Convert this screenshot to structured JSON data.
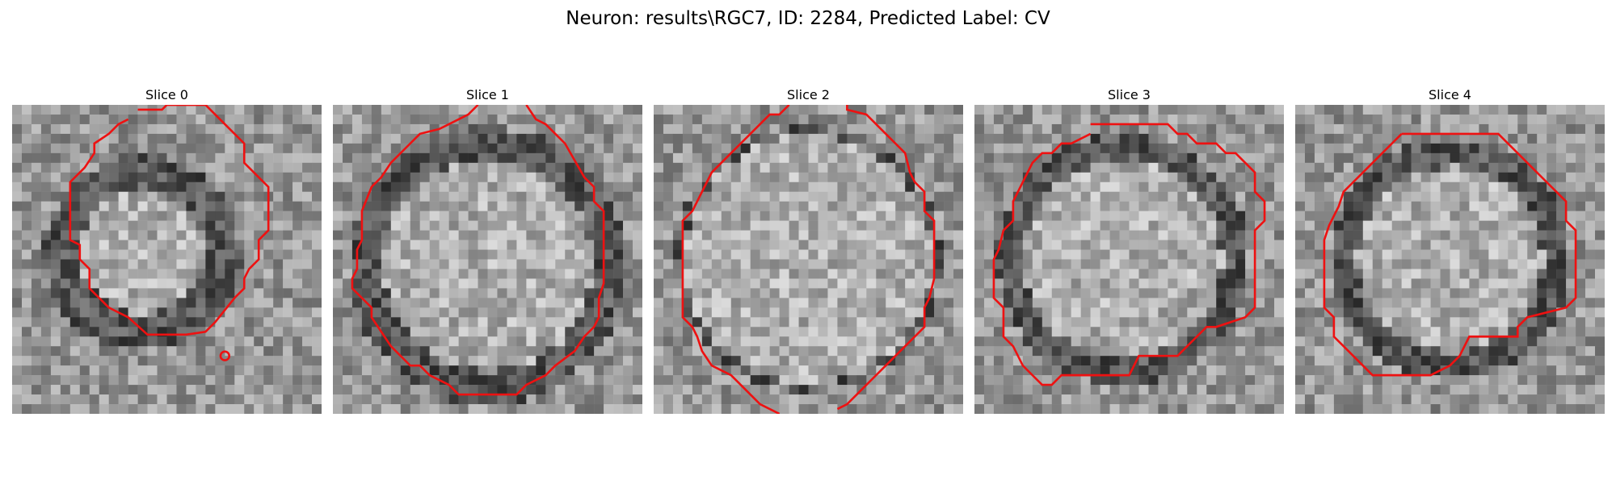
{
  "figure": {
    "title": "Neuron: results\\RGC7, ID: 2284, Predicted Label: CV"
  },
  "contour_color": "#ee1111",
  "colormap": "grayscale",
  "panels": [
    {
      "title": "Slice 0",
      "cell": [
        0.42,
        0.48,
        0.27,
        0.2
      ]
    },
    {
      "title": "Slice 1",
      "cell": [
        0.5,
        0.52,
        0.4,
        0.34
      ]
    },
    {
      "title": "Slice 2",
      "cell": [
        0.5,
        0.5,
        0.38,
        0.4
      ]
    },
    {
      "title": "Slice 3",
      "cell": [
        0.48,
        0.5,
        0.36,
        0.32
      ]
    },
    {
      "title": "Slice 4",
      "cell": [
        0.5,
        0.5,
        0.34,
        0.3
      ]
    }
  ]
}
